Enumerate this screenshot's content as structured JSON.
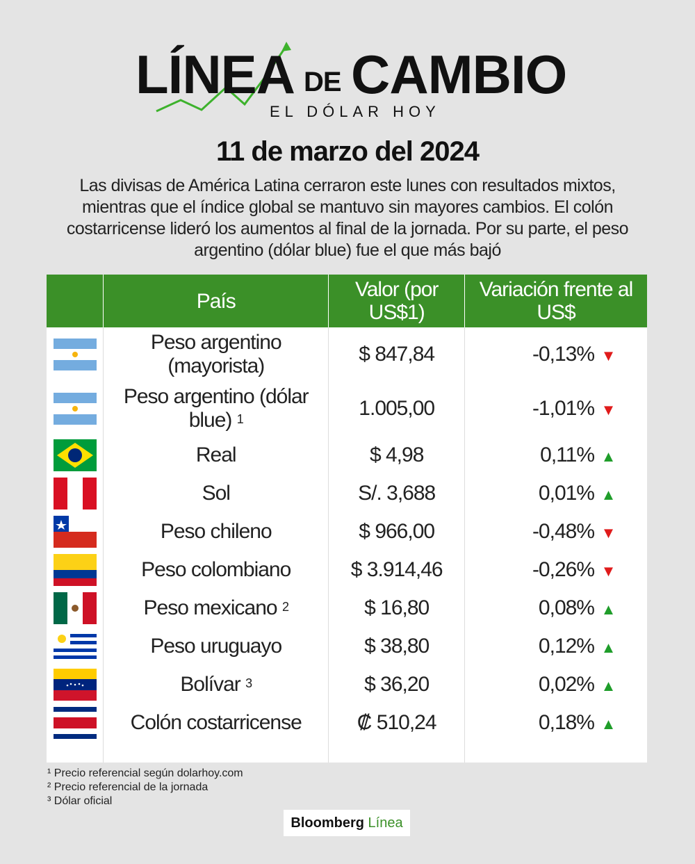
{
  "logo": {
    "word1": "LÍNEA",
    "word2": "DE",
    "word3": "CAMBIO",
    "subtitle": "EL DÓLAR HOY"
  },
  "date": "11 de marzo del 2024",
  "intro": "Las divisas de América Latina cerraron este lunes con resultados mixtos, mientras que el índice global se mantuvo sin mayores cambios. El colón costarricense lideró los aumentos al final de la jornada. Por su parte, el peso argentino (dólar blue) fue el que más bajó",
  "table": {
    "headers": {
      "country": "País",
      "value": "Valor (por US$1)",
      "variation": "Variación frente al US$"
    },
    "rows": [
      {
        "flag": "argentina-flag",
        "name": "Peso argentino (mayorista)",
        "sup": "",
        "value": "$ 847,84",
        "variation": "-0,13%",
        "direction": "down"
      },
      {
        "flag": "argentina-flag",
        "name": "Peso argentino (dólar blue)",
        "sup": "1",
        "value": "1.005,00",
        "variation": "-1,01%",
        "direction": "down"
      },
      {
        "flag": "brazil-flag",
        "name": "Real",
        "sup": "",
        "value": "$ 4,98",
        "variation": "0,11%",
        "direction": "up"
      },
      {
        "flag": "peru-flag",
        "name": "Sol",
        "sup": "",
        "value": "S/. 3,688",
        "variation": "0,01%",
        "direction": "up"
      },
      {
        "flag": "chile-flag",
        "name": "Peso chileno",
        "sup": "",
        "value": "$ 966,00",
        "variation": "-0,48%",
        "direction": "down"
      },
      {
        "flag": "colombia-flag",
        "name": "Peso colombiano",
        "sup": "",
        "value": "$ 3.914,46",
        "variation": "-0,26%",
        "direction": "down"
      },
      {
        "flag": "mexico-flag",
        "name": "Peso mexicano",
        "sup": "2",
        "value": "$ 16,80",
        "variation": "0,08%",
        "direction": "up"
      },
      {
        "flag": "uruguay-flag",
        "name": "Peso uruguayo",
        "sup": "",
        "value": "$ 38,80",
        "variation": "0,12%",
        "direction": "up"
      },
      {
        "flag": "venezuela-flag",
        "name": "Bolívar",
        "sup": "3",
        "value": "$ 36,20",
        "variation": "0,02%",
        "direction": "up"
      },
      {
        "flag": "costa-rica-flag",
        "name": "Colón costarricense",
        "sup": "",
        "value": "₡ 510,24",
        "variation": "0,18%",
        "direction": "up"
      }
    ]
  },
  "notes": [
    "¹ Precio referencial según dolarhoy.com",
    "² Precio referencial de la jornada",
    "³ Dólar oficial"
  ],
  "brand": {
    "main": "Bloomberg",
    "accent": "Línea"
  },
  "colors": {
    "header_green": "#3b9028",
    "down_red": "#e01b1b",
    "up_green": "#1f9d2a",
    "background": "#e4e4e4"
  },
  "arrows": {
    "down": "▼",
    "up": "▲"
  }
}
